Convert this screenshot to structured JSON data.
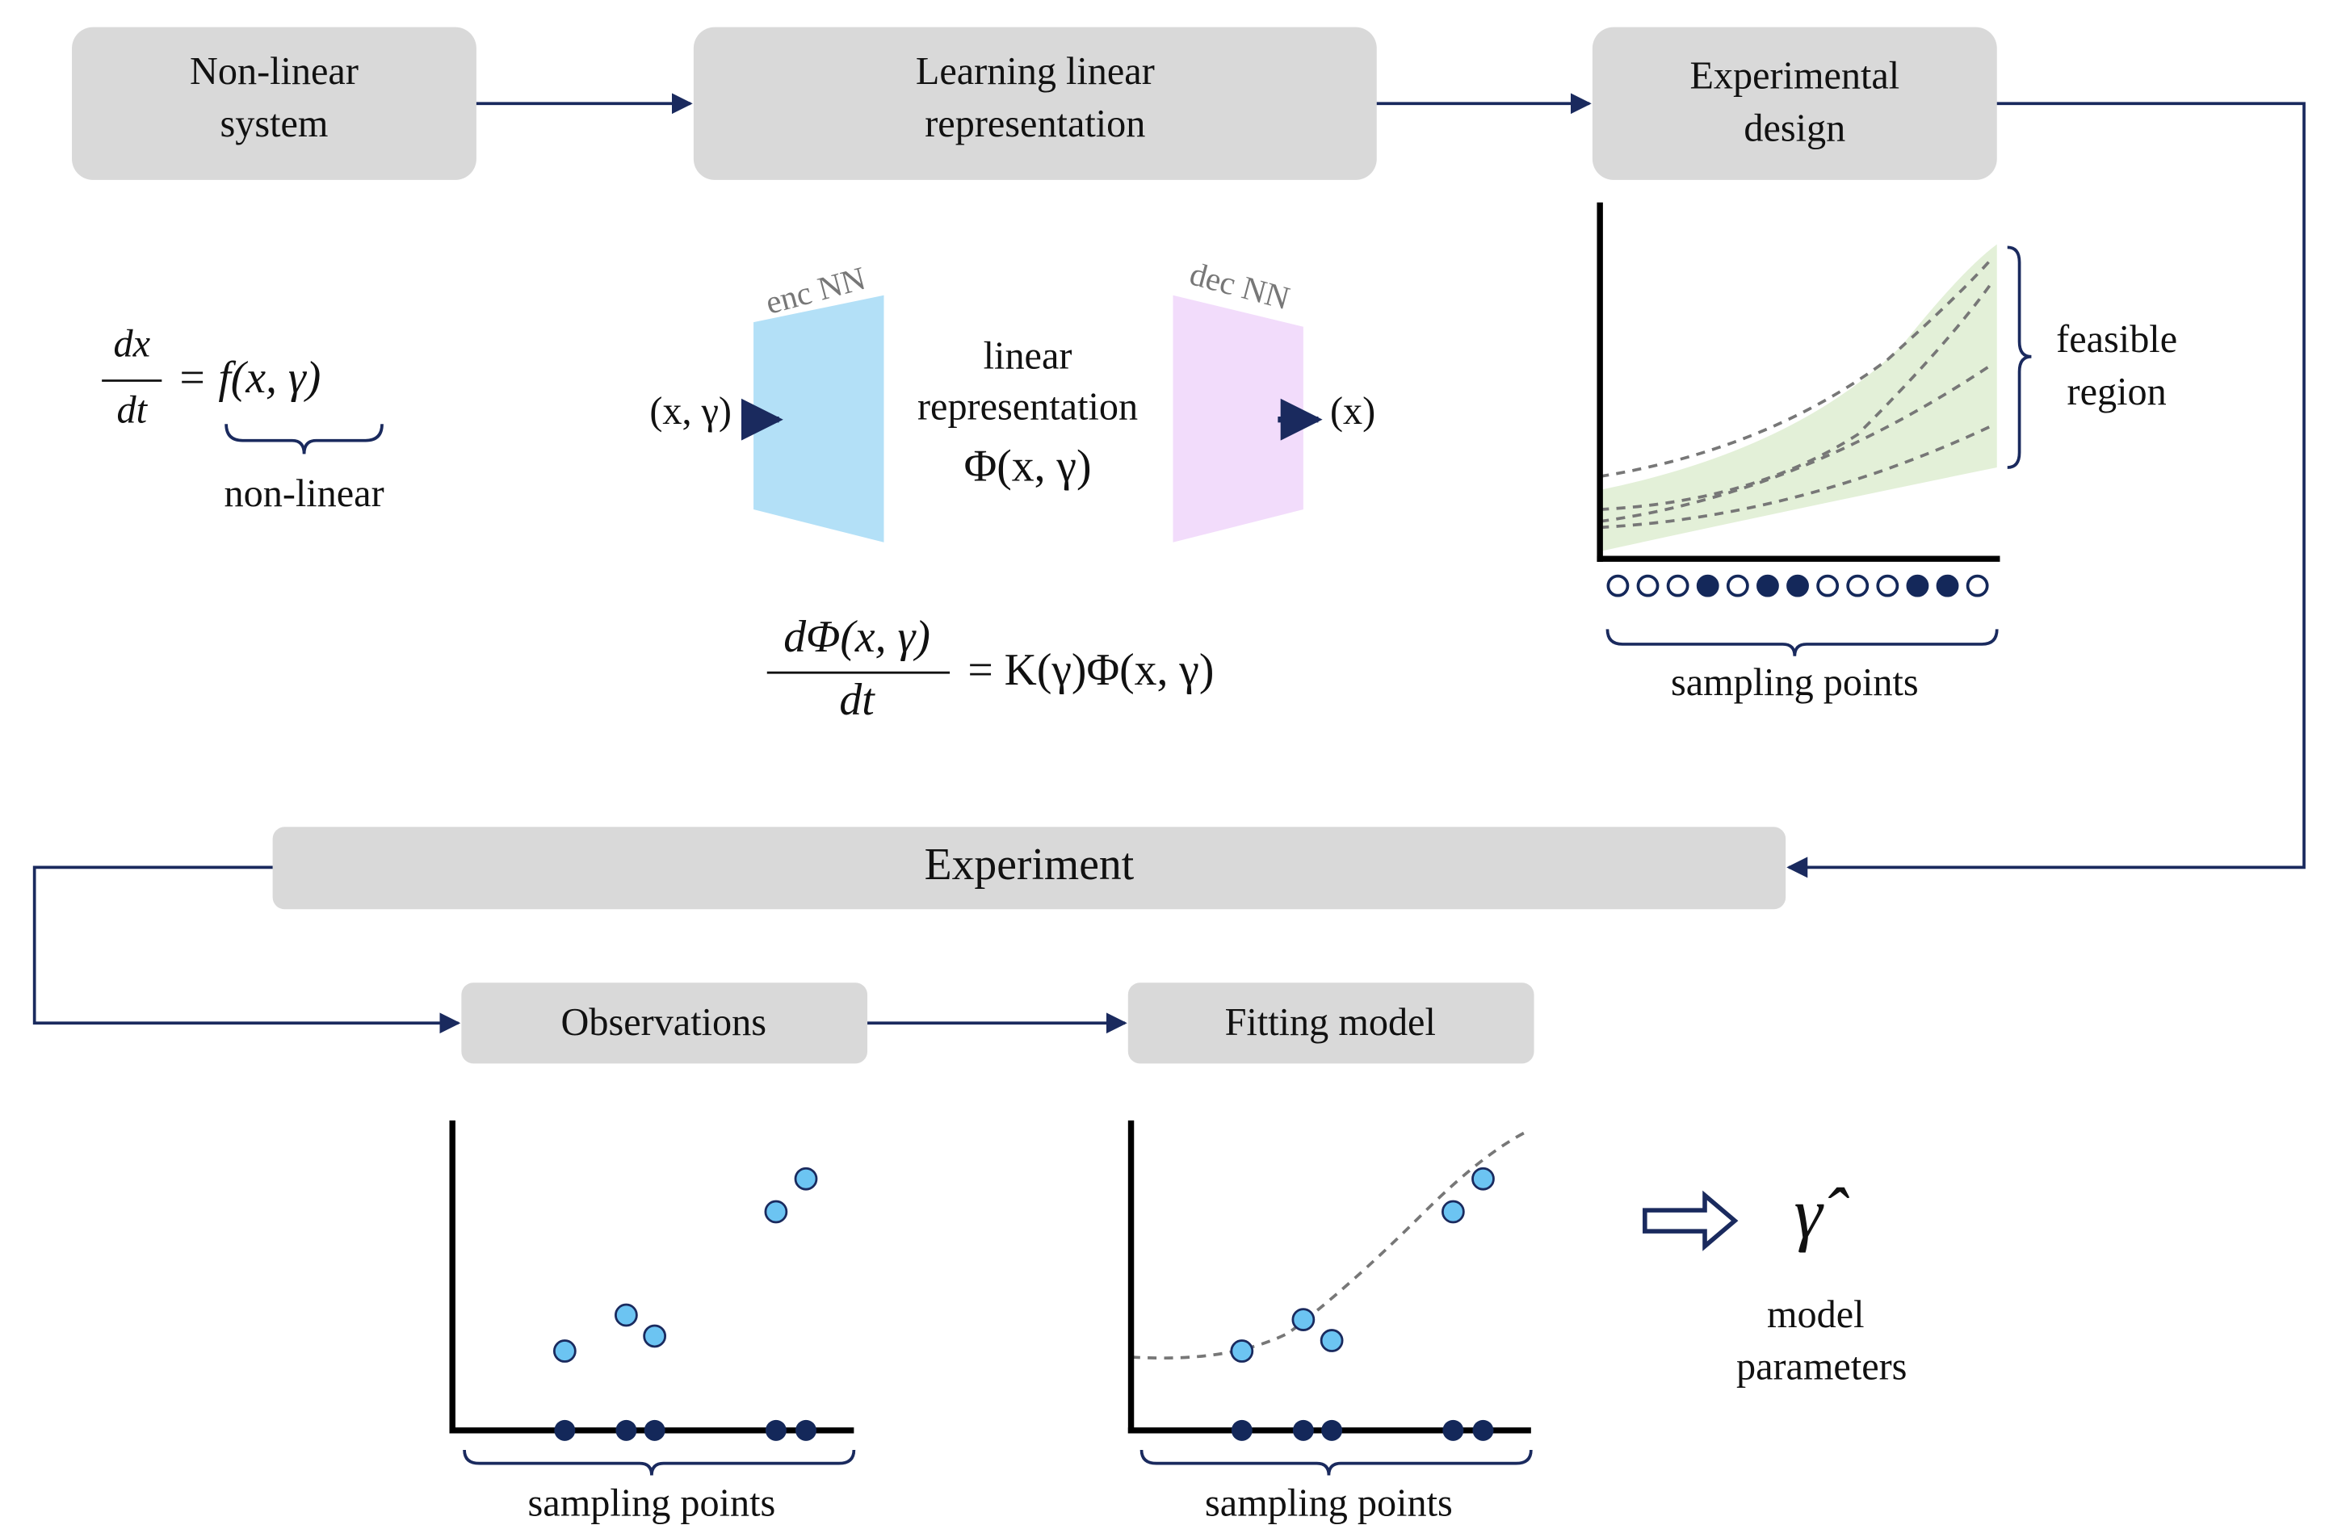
{
  "boxes": {
    "system": [
      "Non-linear",
      "system"
    ],
    "learning": [
      "Learning linear",
      "representation"
    ],
    "design": [
      "Experimental",
      "design"
    ],
    "experiment": "Experiment",
    "observations": "Observations",
    "fitting": "Fitting model"
  },
  "system_eq": {
    "num": "dx",
    "den": "dt",
    "rhs": "= f(x, γ)",
    "note": "non-linear"
  },
  "network": {
    "input": "(x, γ)",
    "encoder": "enc NN",
    "decoder": "dec NN",
    "middle": [
      "linear",
      "representation",
      "Φ(x, γ)"
    ],
    "output": "(x)"
  },
  "koopman_eq": {
    "num": "dΦ(x, γ)",
    "den": "dt",
    "rhs": "= K(γ)Φ(x, γ)"
  },
  "design_plot": {
    "region": [
      "feasible",
      "region"
    ],
    "caption": "sampling points"
  },
  "observation_plot": {
    "caption": "sampling points"
  },
  "fitting_plot": {
    "caption": "sampling points"
  },
  "result": {
    "symbol": "γ̂",
    "label": [
      "model",
      "parameters"
    ]
  }
}
